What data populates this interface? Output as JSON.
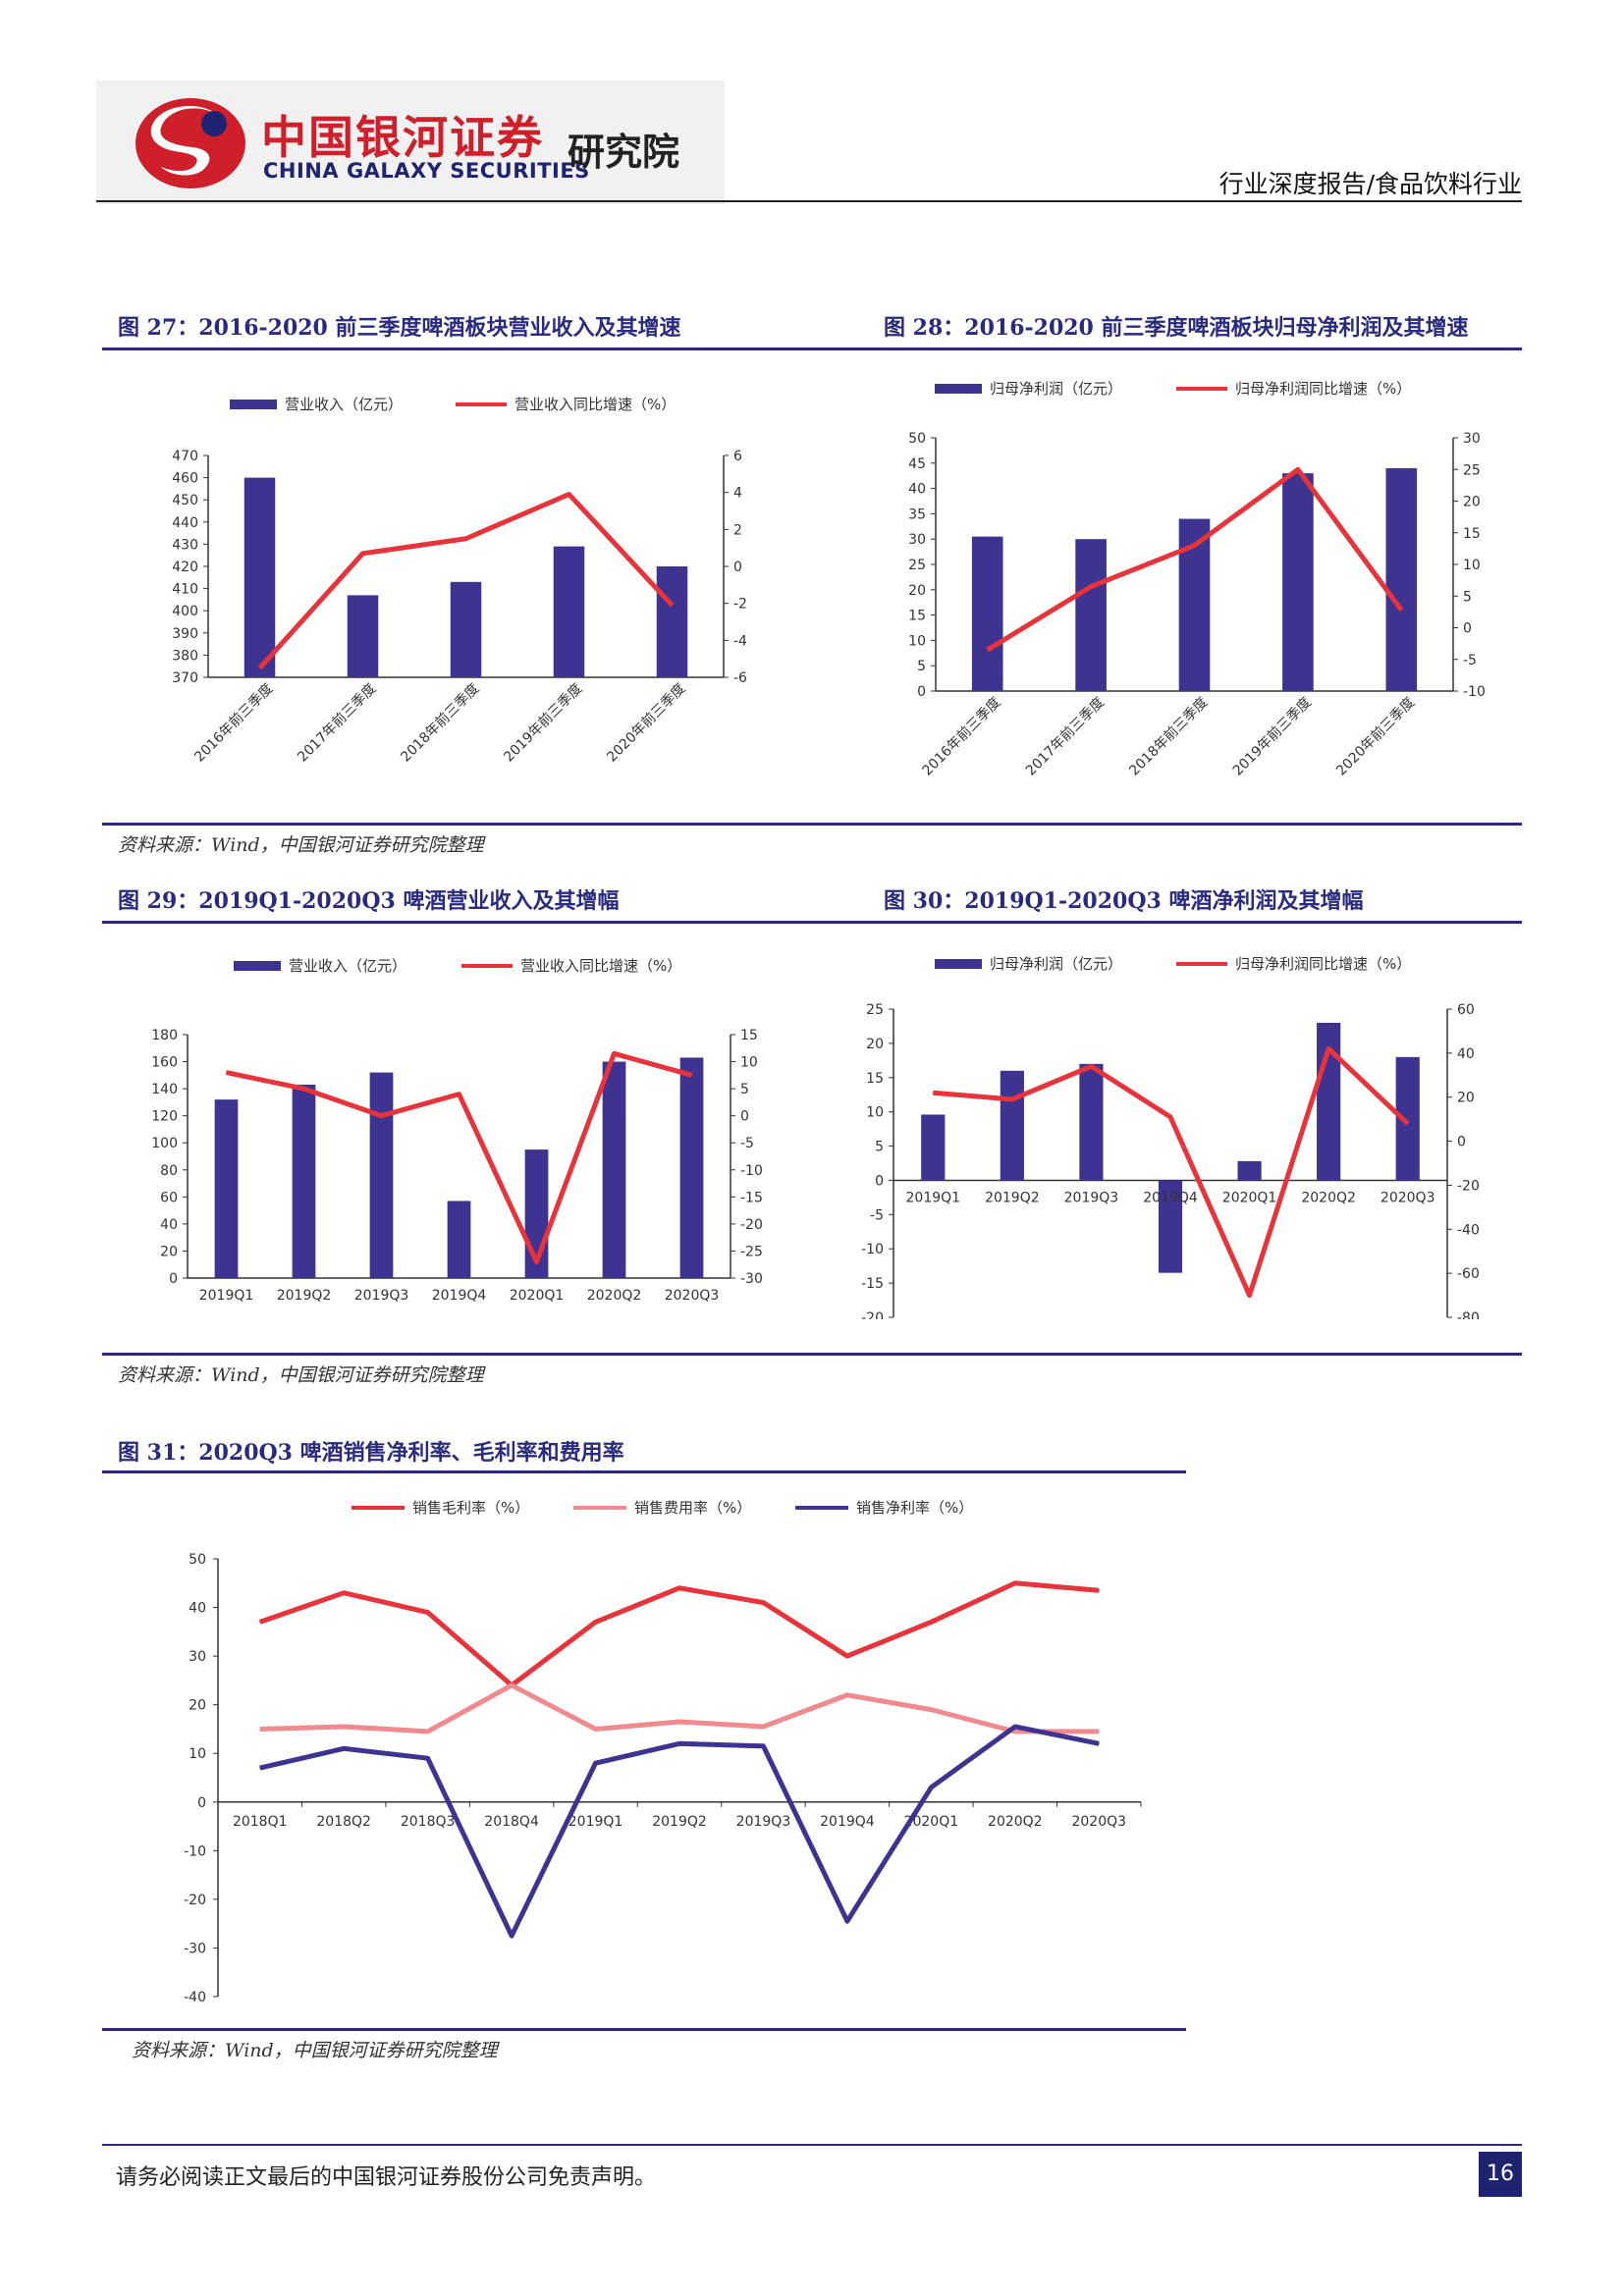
{
  "header": {
    "logo_cn": "中国银河证券",
    "logo_en": "CHINA GALAXY SECURITIES",
    "institute": "研究院",
    "report_type": "行业深度报告/食品饮料行业"
  },
  "colors": {
    "bar": "#3f3391",
    "line": "#e8333a",
    "line_light": "#f08a8e",
    "navy": "#2a2a80"
  },
  "figures": [
    {
      "title": "图 27：2016-2020 前三季度啤酒板块营业收入及其增速",
      "legend_bar": "营业收入（亿元）",
      "legend_line": "营业收入同比增速（%）",
      "chart_data": {
        "type": "bar",
        "categories": [
          "2016年前三季度",
          "2017年前三季度",
          "2018年前三季度",
          "2019年前三季度",
          "2020年前三季度"
        ],
        "series": [
          {
            "name": "营业收入（亿元）",
            "type": "bar",
            "axis": "left",
            "values": [
              460,
              407,
              413,
              429,
              420
            ]
          },
          {
            "name": "营业收入同比增速（%）",
            "type": "line",
            "axis": "right",
            "values": [
              -5.5,
              0.7,
              1.5,
              3.9,
              -2.1
            ]
          }
        ],
        "ylim": [
          370,
          470
        ],
        "yticks": [
          370,
          380,
          390,
          400,
          410,
          420,
          430,
          440,
          450,
          460,
          470
        ],
        "y2lim": [
          -6,
          6
        ],
        "y2ticks": [
          -6,
          -4,
          -2,
          0,
          2,
          4,
          6
        ],
        "grid": false,
        "legend": "top"
      }
    },
    {
      "title": "图 28：2016-2020 前三季度啤酒板块归母净利润及其增速",
      "legend_bar": "归母净利润（亿元）",
      "legend_line": "归母净利润同比增速（%）",
      "chart_data": {
        "type": "bar",
        "categories": [
          "2016年前三季度",
          "2017年前三季度",
          "2018年前三季度",
          "2019年前三季度",
          "2020年前三季度"
        ],
        "series": [
          {
            "name": "归母净利润（亿元）",
            "type": "bar",
            "axis": "left",
            "values": [
              30.5,
              30,
              34,
              43,
              44
            ]
          },
          {
            "name": "归母净利润同比增速（%）",
            "type": "line",
            "axis": "right",
            "values": [
              -3.5,
              6.5,
              13,
              25,
              2.8
            ]
          }
        ],
        "ylim": [
          0,
          50
        ],
        "yticks": [
          0,
          5,
          10,
          15,
          20,
          25,
          30,
          35,
          40,
          45,
          50
        ],
        "y2lim": [
          -10,
          30
        ],
        "y2ticks": [
          -10,
          -5,
          0,
          5,
          10,
          15,
          20,
          25,
          30
        ],
        "grid": false,
        "legend": "top"
      }
    },
    {
      "title": "图 29：2019Q1-2020Q3 啤酒营业收入及其增幅",
      "legend_bar": "营业收入（亿元）",
      "legend_line": "营业收入同比增速（%）",
      "chart_data": {
        "type": "bar",
        "categories": [
          "2019Q1",
          "2019Q2",
          "2019Q3",
          "2019Q4",
          "2020Q1",
          "2020Q2",
          "2020Q3"
        ],
        "series": [
          {
            "name": "营业收入（亿元）",
            "type": "bar",
            "axis": "left",
            "values": [
              132,
              143,
              152,
              57,
              95,
              160,
              163
            ]
          },
          {
            "name": "营业收入同比增速（%）",
            "type": "line",
            "axis": "right",
            "values": [
              8,
              5,
              0,
              4,
              -27,
              11.5,
              7.5
            ]
          }
        ],
        "ylim": [
          0,
          180
        ],
        "yticks": [
          0,
          20,
          40,
          60,
          80,
          100,
          120,
          140,
          160,
          180
        ],
        "y2lim": [
          -30,
          15
        ],
        "y2ticks": [
          -30,
          -25,
          -20,
          -15,
          -10,
          -5,
          0,
          5,
          10,
          15
        ],
        "grid": false,
        "legend": "top"
      }
    },
    {
      "title": "图 30：2019Q1-2020Q3 啤酒净利润及其增幅",
      "legend_bar": "归母净利润（亿元）",
      "legend_line": "归母净利润同比增速（%）",
      "chart_data": {
        "type": "bar",
        "categories": [
          "2019Q1",
          "2019Q2",
          "2019Q3",
          "2019Q4",
          "2020Q1",
          "2020Q2",
          "2020Q3"
        ],
        "series": [
          {
            "name": "归母净利润（亿元）",
            "type": "bar",
            "axis": "left",
            "values": [
              9.6,
              16,
              17,
              -13.5,
              2.8,
              23,
              18
            ]
          },
          {
            "name": "归母净利润同比增速（%）",
            "type": "line",
            "axis": "right",
            "values": [
              22,
              19,
              34,
              11,
              -70,
              42,
              8
            ]
          }
        ],
        "ylim": [
          -20,
          25
        ],
        "yticks": [
          -20,
          -15,
          -10,
          -5,
          0,
          5,
          10,
          15,
          20,
          25
        ],
        "y2lim": [
          -80,
          60
        ],
        "y2ticks": [
          -80,
          -60,
          -40,
          -20,
          0,
          20,
          40,
          60
        ],
        "grid": false,
        "legend": "top"
      }
    },
    {
      "title": "图 31：2020Q3 啤酒销售净利率、毛利率和费用率",
      "legend": [
        "销售毛利率（%）",
        "销售费用率（%）",
        "销售净利率（%）"
      ],
      "chart_data": {
        "type": "line",
        "categories": [
          "2018Q1",
          "2018Q2",
          "2018Q3",
          "2018Q4",
          "2019Q1",
          "2019Q2",
          "2019Q3",
          "2019Q4",
          "2020Q1",
          "2020Q2",
          "2020Q3"
        ],
        "series": [
          {
            "name": "销售毛利率（%）",
            "values": [
              37,
              43,
              39,
              24,
              37,
              44,
              41,
              30,
              37,
              45,
              43.5
            ]
          },
          {
            "name": "销售费用率（%）",
            "values": [
              15,
              15.5,
              14.5,
              24,
              15,
              16.5,
              15.5,
              22,
              19,
              14.5,
              14.5
            ]
          },
          {
            "name": "销售净利率（%）",
            "values": [
              7,
              11,
              9,
              -27.5,
              8,
              12,
              11.5,
              -24.5,
              3,
              15.5,
              12
            ]
          }
        ],
        "ylim": [
          -40,
          50
        ],
        "yticks": [
          -40,
          -30,
          -20,
          -10,
          0,
          10,
          20,
          30,
          40,
          50
        ],
        "grid": false,
        "legend": "top"
      }
    }
  ],
  "source": "资料来源：Wind，中国银河证券研究院整理",
  "footer": {
    "disclaimer": "请务必阅读正文最后的中国银河证券股份公司免责声明。",
    "page": "16"
  }
}
